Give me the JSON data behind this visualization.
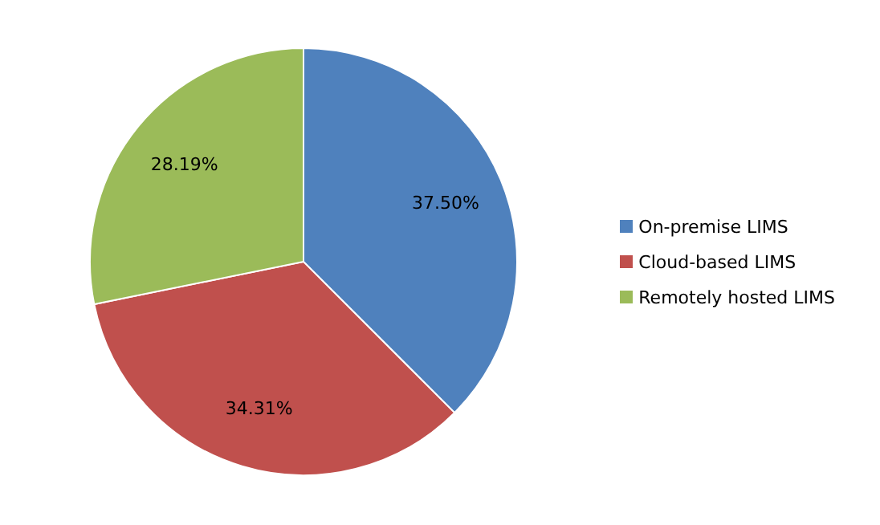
{
  "chart_data": {
    "type": "pie",
    "categories": [
      "On-premise LIMS",
      "Cloud-based LIMS",
      "Remotely hosted LIMS"
    ],
    "values": [
      37.5,
      34.31,
      28.19
    ],
    "colors": [
      "#4f81bd",
      "#c0504d",
      "#9bbb59"
    ],
    "value_labels": [
      "37.50%",
      "34.31%",
      "28.19%"
    ],
    "legend": "right"
  }
}
